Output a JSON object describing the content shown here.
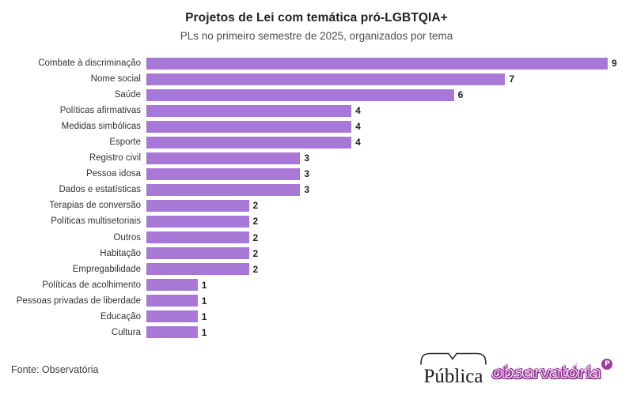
{
  "header": {
    "title": "Projetos de Lei com temática pró-LGBTQIA+",
    "subtitle": "PLs no primeiro semestre de 2025, organizados por tema"
  },
  "chart_data": {
    "type": "bar",
    "orientation": "horizontal",
    "title": "Projetos de Lei com temática pró-LGBTQIA+",
    "subtitle": "PLs no primeiro semestre de 2025, organizados por tema",
    "categories": [
      "Combate à discriminação",
      "Nome social",
      "Saúde",
      "Políticas afirmativas",
      "Medidas simbólicas",
      "Esporte",
      "Registro civil",
      "Pessoa idosa",
      "Dados e estatísticas",
      "Terapias de conversão",
      "Políticas multisetoriais",
      "Outros",
      "Habitação",
      "Empregabilidade",
      "Políticas de acolhimento",
      "Pessoas privadas de liberdade",
      "Educação",
      "Cultura"
    ],
    "values": [
      9,
      7,
      6,
      4,
      4,
      4,
      3,
      3,
      3,
      2,
      2,
      2,
      2,
      2,
      1,
      1,
      1,
      1
    ],
    "xlabel": "",
    "ylabel": "",
    "xlim": [
      0,
      9
    ],
    "grid": false,
    "legend": false,
    "value_labels": true,
    "bar_color": "#a778d6",
    "value_label_color": "#222222"
  },
  "footer": {
    "source": "Fonte: Observatória",
    "logos": {
      "publica": "Pública",
      "observatoria": "observatória",
      "observatoria_badge": "P"
    }
  },
  "colors": {
    "background": "#ffffff",
    "title": "#212121",
    "subtitle": "#4d4d4d",
    "category_label": "#333333",
    "bar": "#a778d6",
    "obs_logo": "#a13ba1"
  }
}
